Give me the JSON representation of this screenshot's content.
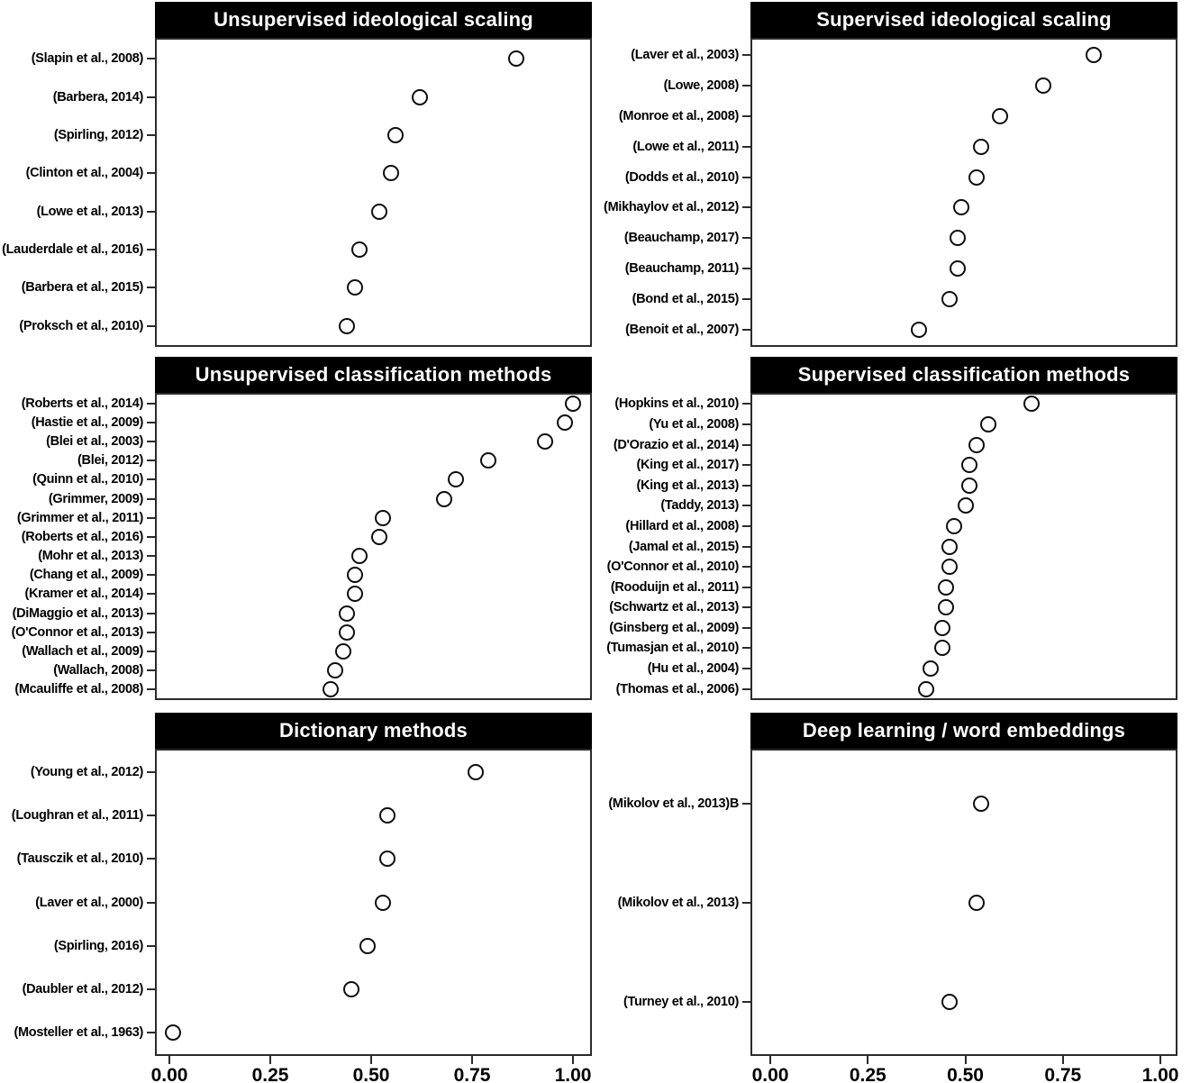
{
  "colors": {
    "title_bar_bg": "#000000",
    "title_text": "#ffffff",
    "dot_stroke": "#0d0d0d",
    "dot_fill": "#ffffff",
    "panel_border": "#2b2b2b"
  },
  "chart_data": {
    "type": "scatter",
    "subtype": "dot-plot",
    "xlim": [
      0,
      1
    ],
    "x_ticks": [
      0,
      0.25,
      0.5,
      0.75,
      1
    ],
    "x_tick_labels": [
      "0.00",
      "0.25",
      "0.50",
      "0.75",
      "1.00"
    ],
    "grid": "off",
    "legend": "none",
    "marker": "open-circle",
    "panels": [
      {
        "title": "Unsupervised ideological scaling",
        "row": 0,
        "col": 0,
        "points": [
          {
            "label": "(Slapin et al., 2008)",
            "value": 0.86
          },
          {
            "label": "(Barbera, 2014)",
            "value": 0.62
          },
          {
            "label": "(Spirling, 2012)",
            "value": 0.56
          },
          {
            "label": "(Clinton et al., 2004)",
            "value": 0.55
          },
          {
            "label": "(Lowe et al., 2013)",
            "value": 0.52
          },
          {
            "label": "(Lauderdale et al., 2016)",
            "value": 0.47
          },
          {
            "label": "(Barbera et al., 2015)",
            "value": 0.46
          },
          {
            "label": "(Proksch et al., 2010)",
            "value": 0.44
          }
        ]
      },
      {
        "title": "Supervised ideological scaling",
        "row": 0,
        "col": 1,
        "points": [
          {
            "label": "(Laver et al., 2003)",
            "value": 0.83
          },
          {
            "label": "(Lowe, 2008)",
            "value": 0.7
          },
          {
            "label": "(Monroe et al., 2008)",
            "value": 0.59
          },
          {
            "label": "(Lowe et al., 2011)",
            "value": 0.54
          },
          {
            "label": "(Dodds et al., 2010)",
            "value": 0.53
          },
          {
            "label": "(Mikhaylov et al., 2012)",
            "value": 0.49
          },
          {
            "label": "(Beauchamp, 2017)",
            "value": 0.48
          },
          {
            "label": "(Beauchamp, 2011)",
            "value": 0.48
          },
          {
            "label": "(Bond et al., 2015)",
            "value": 0.46
          },
          {
            "label": "(Benoit et al., 2007)",
            "value": 0.38
          }
        ]
      },
      {
        "title": "Unsupervised classification methods",
        "row": 1,
        "col": 0,
        "points": [
          {
            "label": "(Roberts et al., 2014)",
            "value": 1.0
          },
          {
            "label": "(Hastie et al., 2009)",
            "value": 0.98
          },
          {
            "label": "(Blei et al., 2003)",
            "value": 0.93
          },
          {
            "label": "(Blei, 2012)",
            "value": 0.79
          },
          {
            "label": "(Quinn et al., 2010)",
            "value": 0.71
          },
          {
            "label": "(Grimmer, 2009)",
            "value": 0.68
          },
          {
            "label": "(Grimmer et al., 2011)",
            "value": 0.53
          },
          {
            "label": "(Roberts et al., 2016)",
            "value": 0.52
          },
          {
            "label": "(Mohr et al., 2013)",
            "value": 0.47
          },
          {
            "label": "(Chang et al., 2009)",
            "value": 0.46
          },
          {
            "label": "(Kramer et al., 2014)",
            "value": 0.46
          },
          {
            "label": "(DiMaggio et al., 2013)",
            "value": 0.44
          },
          {
            "label": "(O'Connor et al., 2013)",
            "value": 0.44
          },
          {
            "label": "(Wallach et al., 2009)",
            "value": 0.43
          },
          {
            "label": "(Wallach, 2008)",
            "value": 0.41
          },
          {
            "label": "(Mcauliffe et al., 2008)",
            "value": 0.4
          }
        ]
      },
      {
        "title": "Supervised classification methods",
        "row": 1,
        "col": 1,
        "points": [
          {
            "label": "(Hopkins et al., 2010)",
            "value": 0.67
          },
          {
            "label": "(Yu et al., 2008)",
            "value": 0.56
          },
          {
            "label": "(D'Orazio et al., 2014)",
            "value": 0.53
          },
          {
            "label": "(King et al., 2017)",
            "value": 0.51
          },
          {
            "label": "(King et al., 2013)",
            "value": 0.51
          },
          {
            "label": "(Taddy, 2013)",
            "value": 0.5
          },
          {
            "label": "(Hillard et al., 2008)",
            "value": 0.47
          },
          {
            "label": "(Jamal et al., 2015)",
            "value": 0.46
          },
          {
            "label": "(O'Connor et al., 2010)",
            "value": 0.46
          },
          {
            "label": "(Rooduijn et al., 2011)",
            "value": 0.45
          },
          {
            "label": "(Schwartz et al., 2013)",
            "value": 0.45
          },
          {
            "label": "(Ginsberg et al., 2009)",
            "value": 0.44
          },
          {
            "label": "(Tumasjan et al., 2010)",
            "value": 0.44
          },
          {
            "label": "(Hu et al., 2004)",
            "value": 0.41
          },
          {
            "label": "(Thomas et al., 2006)",
            "value": 0.4
          }
        ]
      },
      {
        "title": "Dictionary methods",
        "row": 2,
        "col": 0,
        "points": [
          {
            "label": "(Young et al., 2012)",
            "value": 0.76
          },
          {
            "label": "(Loughran et al., 2011)",
            "value": 0.54
          },
          {
            "label": "(Tausczik et al., 2010)",
            "value": 0.54
          },
          {
            "label": "(Laver et al., 2000)",
            "value": 0.53
          },
          {
            "label": "(Spirling, 2016)",
            "value": 0.49
          },
          {
            "label": "(Daubler et al., 2012)",
            "value": 0.45
          },
          {
            "label": "(Mosteller et al., 1963)",
            "value": 0.01
          }
        ]
      },
      {
        "title": "Deep learning / word embeddings",
        "row": 2,
        "col": 1,
        "points": [
          {
            "label": "(Mikolov et al., 2013)B",
            "value": 0.54
          },
          {
            "label": "(Mikolov et al., 2013)",
            "value": 0.53
          },
          {
            "label": "(Turney et al., 2010)",
            "value": 0.46
          }
        ]
      }
    ]
  }
}
